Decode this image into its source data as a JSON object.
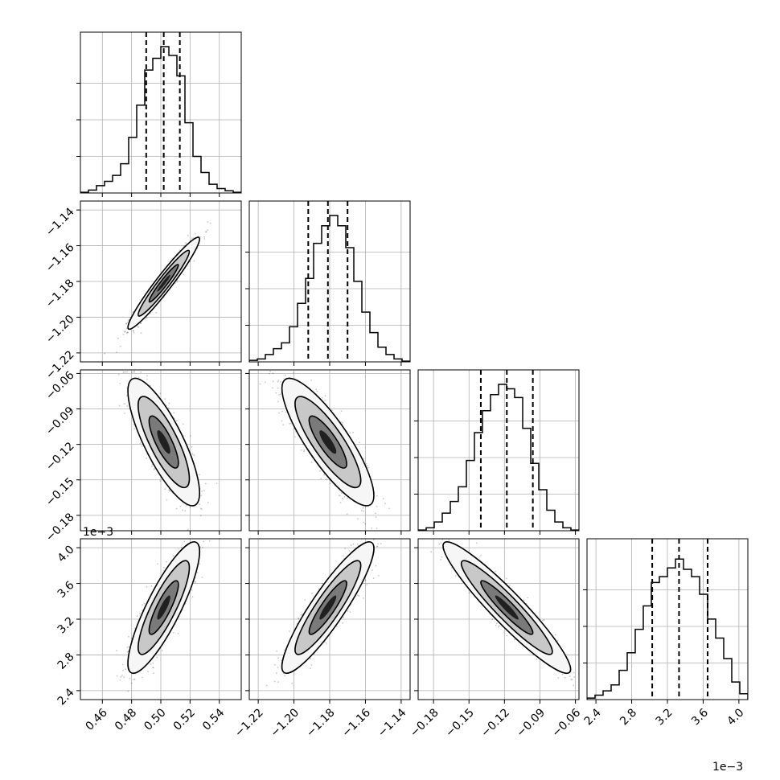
{
  "chart_data": {
    "type": "corner",
    "grid": true,
    "legend": "none",
    "quantiles": [
      0.16,
      0.5,
      0.84
    ],
    "parameters": [
      {
        "index": 0,
        "ticks": [
          "0.46",
          "0.48",
          "0.50",
          "0.52",
          "0.54"
        ],
        "tick_values": [
          0.46,
          0.48,
          0.5,
          0.52,
          0.54
        ],
        "range": [
          0.445,
          0.555
        ],
        "offset_text": "",
        "histogram": [
          0.005,
          0.02,
          0.05,
          0.08,
          0.12,
          0.2,
          0.38,
          0.6,
          0.84,
          0.92,
          1.0,
          0.94,
          0.8,
          0.48,
          0.25,
          0.14,
          0.06,
          0.03,
          0.015,
          0.005
        ],
        "quantile_values": [
          0.49,
          0.502,
          0.513
        ]
      },
      {
        "index": 1,
        "ticks": [
          "−1.22",
          "−1.20",
          "−1.18",
          "−1.16",
          "−1.14"
        ],
        "tick_values": [
          -1.22,
          -1.2,
          -1.18,
          -1.16,
          -1.14
        ],
        "range": [
          -1.225,
          -1.135
        ],
        "offset_text": "",
        "histogram": [
          0.01,
          0.02,
          0.05,
          0.09,
          0.13,
          0.24,
          0.4,
          0.57,
          0.81,
          0.93,
          1.0,
          0.93,
          0.78,
          0.55,
          0.34,
          0.2,
          0.1,
          0.05,
          0.02,
          0.005
        ],
        "quantile_values": [
          -1.192,
          -1.181,
          -1.17
        ]
      },
      {
        "index": 2,
        "ticks": [
          "−0.18",
          "−0.15",
          "−0.12",
          "−0.09",
          "−0.06"
        ],
        "tick_values": [
          -0.18,
          -0.15,
          -0.12,
          -0.09,
          -0.06
        ],
        "range": [
          -0.193,
          -0.057
        ],
        "offset_text": "",
        "histogram": [
          0.005,
          0.02,
          0.06,
          0.12,
          0.2,
          0.3,
          0.48,
          0.67,
          0.82,
          0.93,
          1.0,
          0.97,
          0.91,
          0.7,
          0.46,
          0.28,
          0.14,
          0.06,
          0.02,
          0.005
        ],
        "quantile_values": [
          -0.14,
          -0.118,
          -0.096
        ]
      },
      {
        "index": 3,
        "ticks": [
          "2.4",
          "2.8",
          "3.2",
          "3.6",
          "4.0"
        ],
        "tick_values": [
          2.4,
          2.8,
          3.2,
          3.6,
          4.0
        ],
        "range": [
          2.3,
          4.1
        ],
        "offset_text": "1e−3",
        "histogram": [
          0.01,
          0.03,
          0.06,
          0.1,
          0.2,
          0.32,
          0.48,
          0.64,
          0.8,
          0.84,
          0.9,
          0.96,
          0.89,
          0.84,
          0.72,
          0.55,
          0.42,
          0.28,
          0.12,
          0.04
        ],
        "quantile_values": [
          3.03,
          3.33,
          3.65
        ]
      }
    ],
    "pairs": [
      {
        "x": 0,
        "y": 1,
        "mean": [
          0.502,
          -1.181
        ],
        "sd": [
          0.01,
          0.0105
        ],
        "rho": 0.96
      },
      {
        "x": 0,
        "y": 2,
        "mean": [
          0.502,
          -0.118
        ],
        "sd": [
          0.01,
          0.022
        ],
        "rho": -0.8
      },
      {
        "x": 1,
        "y": 2,
        "mean": [
          -1.181,
          -0.118
        ],
        "sd": [
          0.0105,
          0.022
        ],
        "rho": -0.84
      },
      {
        "x": 0,
        "y": 3,
        "mean": [
          0.502,
          3.33
        ],
        "sd": [
          0.01,
          0.3
        ],
        "rho": 0.85
      },
      {
        "x": 1,
        "y": 3,
        "mean": [
          -1.181,
          3.33
        ],
        "sd": [
          0.0105,
          0.3
        ],
        "rho": 0.9
      },
      {
        "x": 2,
        "y": 3,
        "mean": [
          -0.118,
          3.33
        ],
        "sd": [
          0.022,
          0.3
        ],
        "rho": -0.94
      }
    ]
  }
}
